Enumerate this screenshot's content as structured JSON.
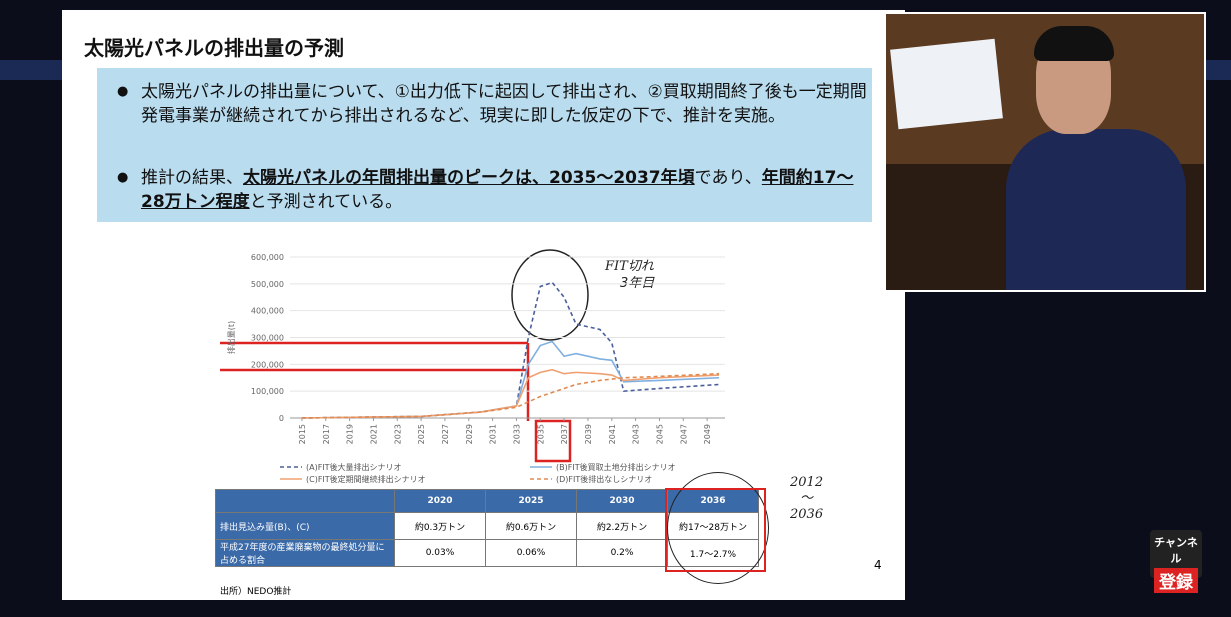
{
  "slide": {
    "title": "太陽光パネルの排出量の予測",
    "bullets": [
      [
        "太陽光パネルの排出量について、①出力低下に起因して排出され、②買取期間終了後も一定期間発電事業が継続されてから排出されるなど、現実に即した仮定の下で、推計を実施。"
      ],
      [
        "推計の結果、",
        "太陽光パネルの年間排出量のピークは、2035〜2037年頃",
        "であり、",
        "年間約17〜28万トン程度",
        "と予測されている。"
      ]
    ],
    "annotations": [
      "FIT切れ",
      "3年目",
      "2012",
      "〜",
      "2036"
    ],
    "table": {
      "columns": [
        "2020",
        "2025",
        "2030",
        "2036"
      ],
      "rows": [
        [
          "排出見込み量(B)、(C)",
          "約0.3万トン",
          "約0.6万トン",
          "約2.2万トン",
          "約17〜28万トン"
        ],
        [
          "平成27年度の産業廃棄物の最終処分量に占める割合",
          "0.03%",
          "0.06%",
          "0.2%",
          "1.7〜2.7%"
        ]
      ]
    },
    "source": "出所）NEDO推計",
    "page": "4"
  },
  "chart_data": {
    "type": "line",
    "ylabel": "排出量(t)",
    "x": [
      2015,
      2020,
      2025,
      2030,
      2033,
      2034,
      2035,
      2036,
      2037,
      2038,
      2040,
      2041,
      2042,
      2045,
      2050
    ],
    "xlim": [
      2014,
      2050.5
    ],
    "xticks": [
      2015,
      2017,
      2019,
      2021,
      2023,
      2025,
      2027,
      2029,
      2031,
      2033,
      2035,
      2037,
      2039,
      2041,
      2043,
      2045,
      2047,
      2049
    ],
    "ylim": [
      0,
      600000
    ],
    "yticks": [
      0,
      {
        "value": 100000,
        "label": "100,000"
      },
      {
        "value": 200000,
        "label": "200,000"
      },
      {
        "value": 300000,
        "label": "300,000"
      },
      {
        "value": 400000,
        "label": "400,000"
      },
      {
        "value": 500000,
        "label": "500,000"
      },
      {
        "value": 600000,
        "label": "600,000"
      }
    ],
    "series": [
      {
        "name": "(A)FIT後大量排出シナリオ",
        "color": "#4a5f9a",
        "dashed": true,
        "values": [
          0,
          3000,
          6000,
          22000,
          45000,
          300000,
          490000,
          505000,
          450000,
          350000,
          330000,
          280000,
          100000,
          110000,
          125000
        ]
      },
      {
        "name": "(B)FIT後買取土地分排出シナリオ",
        "color": "#7fb0e0",
        "dashed": false,
        "values": [
          0,
          3000,
          6000,
          22000,
          45000,
          200000,
          270000,
          285000,
          230000,
          240000,
          220000,
          215000,
          135000,
          140000,
          150000
        ]
      },
      {
        "name": "(C)FIT後定期間継続排出シナリオ",
        "color": "#f0a070",
        "dashed": false,
        "values": [
          0,
          3000,
          6000,
          22000,
          45000,
          150000,
          170000,
          180000,
          165000,
          170000,
          165000,
          160000,
          140000,
          150000,
          160000
        ]
      },
      {
        "name": "(D)FIT後排出なしシナリオ",
        "color": "#e08a50",
        "dashed": true,
        "values": [
          0,
          3000,
          6000,
          22000,
          40000,
          60000,
          80000,
          95000,
          110000,
          125000,
          140000,
          145000,
          150000,
          155000,
          165000
        ]
      }
    ]
  },
  "overlay": {
    "button": [
      "チャンネル",
      "登録"
    ]
  }
}
